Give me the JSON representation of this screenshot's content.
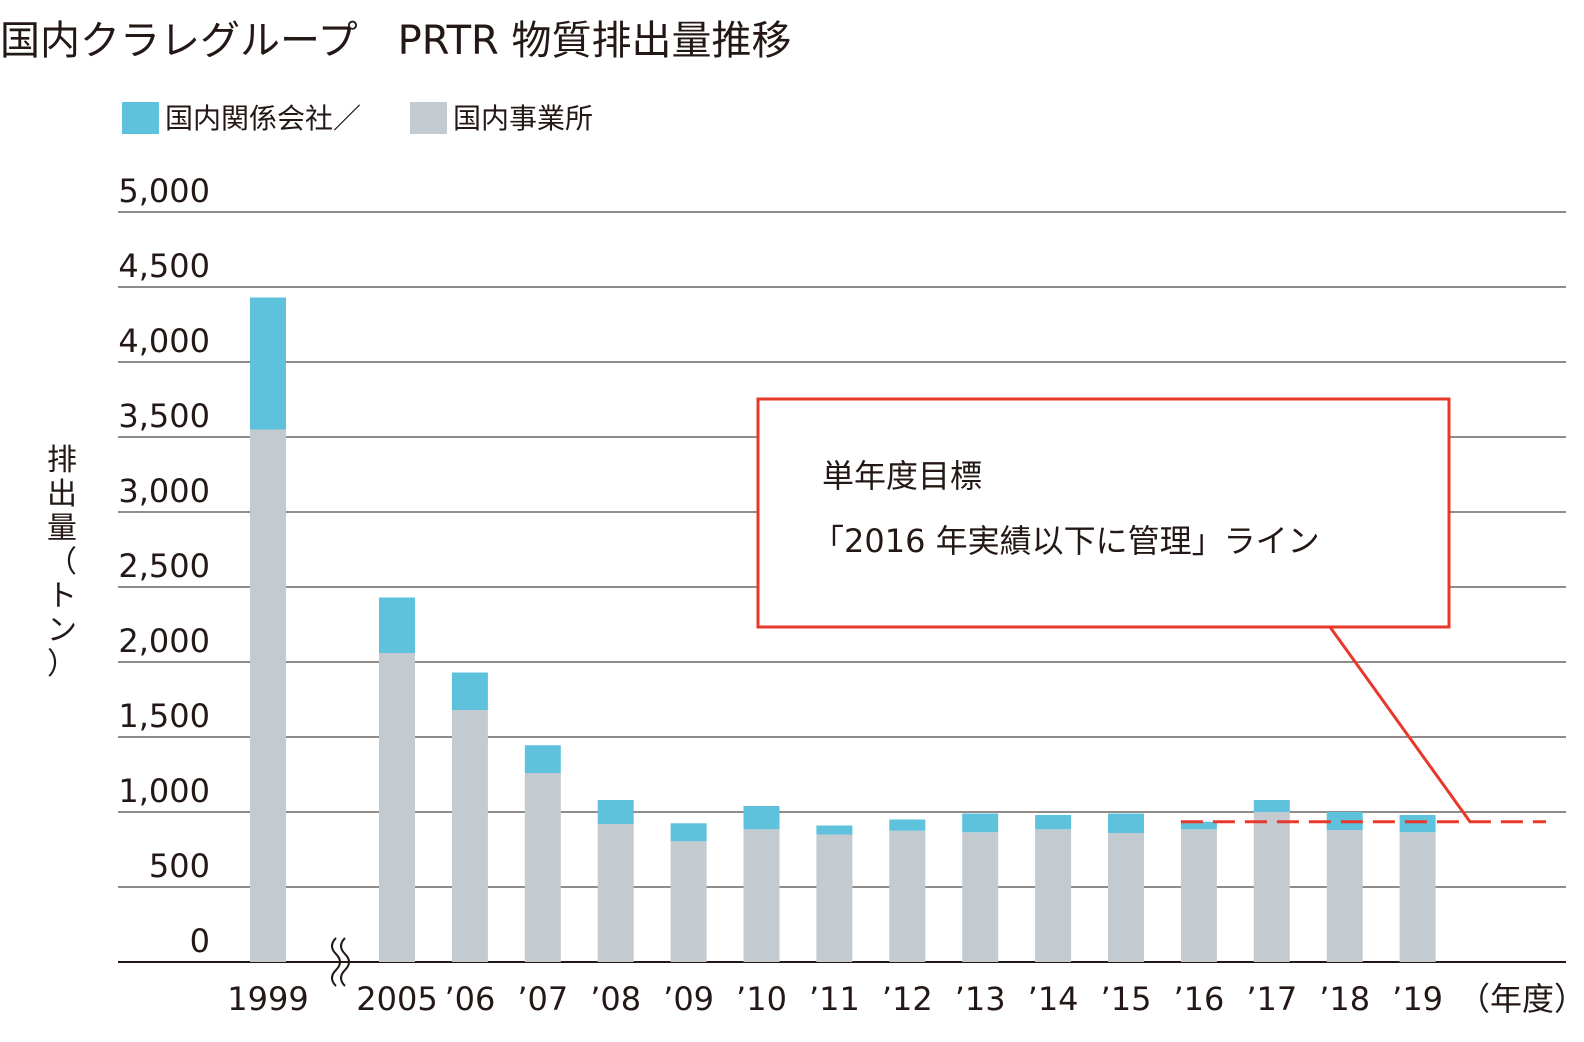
{
  "chart_data": {
    "type": "bar",
    "stacked": true,
    "title": "国内クラレグループ　PRTR 物質排出量推移",
    "ylabel": "排出量（トン）",
    "xunit": "（年度）",
    "ylim": [
      0,
      5000
    ],
    "yticks": [
      0,
      500,
      1000,
      1500,
      2000,
      2500,
      3000,
      3500,
      4000,
      4500,
      5000
    ],
    "ytick_labels": [
      "0",
      "500",
      "1,000",
      "1,500",
      "2,000",
      "2,500",
      "3,000",
      "3,500",
      "4,000",
      "4,500",
      "5,000"
    ],
    "grid": true,
    "axis_break_after": "1999",
    "categories": [
      "1999",
      "2005",
      "’06",
      "’07",
      "’08",
      "’09",
      "’10",
      "’11",
      "’12",
      "’13",
      "’14",
      "’15",
      "’16",
      "’17",
      "’18",
      "’19"
    ],
    "legend": {
      "label": "国内関係会社／",
      "label2": "国内事業所",
      "position": "top-left"
    },
    "series": [
      {
        "name": "国内事業所",
        "color": "#c3cbd1",
        "values": [
          3550,
          2060,
          1680,
          1260,
          920,
          805,
          885,
          850,
          875,
          865,
          885,
          860,
          885,
          1000,
          880,
          865
        ]
      },
      {
        "name": "国内関係会社",
        "color": "#5ec2dd",
        "values": [
          880,
          370,
          250,
          185,
          160,
          120,
          155,
          60,
          75,
          125,
          95,
          130,
          50,
          80,
          120,
          115
        ]
      }
    ],
    "target_line": {
      "value": 935,
      "from_category": "’16",
      "color": "#e8382b",
      "label_line1": "単年度目標",
      "label_line2": "「2016 年実績以下に管理」ライン"
    }
  }
}
